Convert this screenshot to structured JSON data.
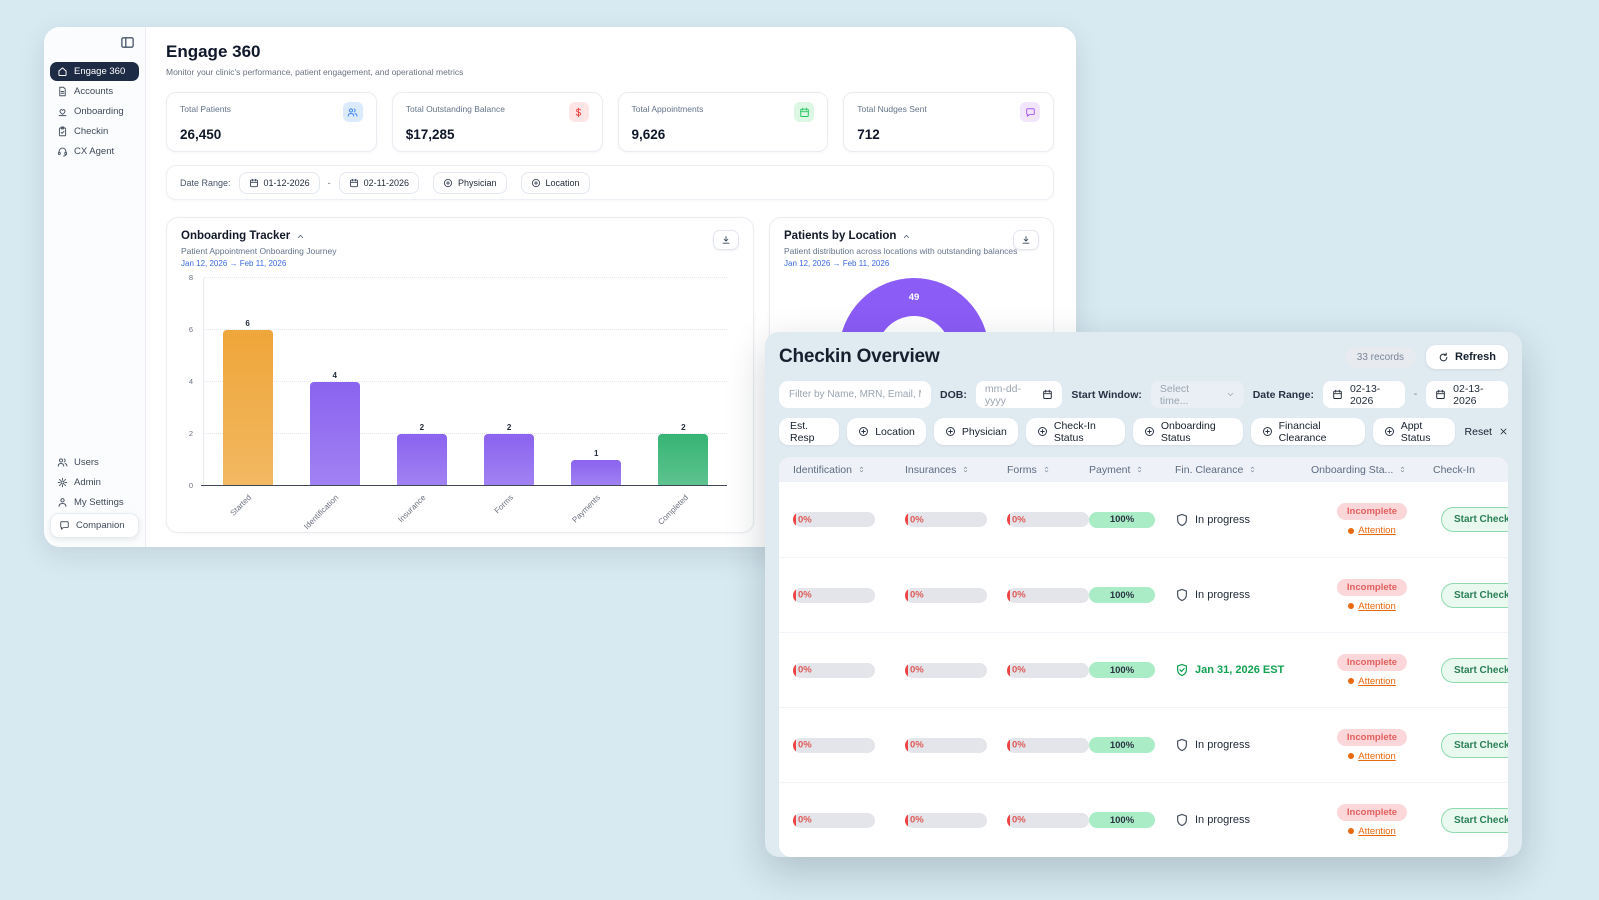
{
  "colors": {
    "page_bg": "#d7e9f1",
    "accent_blue": "#3b82f6",
    "accent_red": "#ef4444",
    "accent_green": "#22c55e",
    "accent_purple": "#a855f7",
    "link_blue": "#3b6be0"
  },
  "sidebar": {
    "nav_items": [
      {
        "label": "Engage 360",
        "icon": "home",
        "active": true
      },
      {
        "label": "Accounts",
        "icon": "document",
        "active": false
      },
      {
        "label": "Onboarding",
        "icon": "heart-care",
        "active": false
      },
      {
        "label": "Checkin",
        "icon": "clipboard",
        "active": false
      },
      {
        "label": "CX Agent",
        "icon": "headset",
        "active": false
      }
    ],
    "footer_items": [
      {
        "label": "Users",
        "icon": "users",
        "pill": false
      },
      {
        "label": "Admin",
        "icon": "gear",
        "pill": false
      },
      {
        "label": "My Settings",
        "icon": "person",
        "pill": false
      },
      {
        "label": "Companion",
        "icon": "chat",
        "pill": true
      }
    ]
  },
  "header": {
    "title": "Engage 360",
    "subtitle": "Monitor your clinic's performance, patient engagement, and operational metrics"
  },
  "stats": [
    {
      "label": "Total Patients",
      "value": "26,450",
      "icon": "users",
      "fg": "#3b82f6",
      "bg": "#dceafe"
    },
    {
      "label": "Total Outstanding Balance",
      "value": "$17,285",
      "icon": "dollar",
      "fg": "#ef4444",
      "bg": "#fde5e5"
    },
    {
      "label": "Total Appointments",
      "value": "9,626",
      "icon": "calendar",
      "fg": "#22c55e",
      "bg": "#dcf7e4"
    },
    {
      "label": "Total Nudges Sent",
      "value": "712",
      "icon": "chat",
      "fg": "#a855f7",
      "bg": "#f2e6fd"
    }
  ],
  "filter_bar": {
    "label": "Date Range:",
    "start_date": "01-12-2026",
    "separator": "-",
    "end_date": "02-11-2026",
    "physician_label": "Physician",
    "location_label": "Location"
  },
  "onboarding_tracker": {
    "title": "Onboarding Tracker",
    "subtitle": "Patient Appointment Onboarding Journey",
    "date_range": "Jan 12, 2026 → Feb 11, 2026"
  },
  "patients_by_location": {
    "title": "Patients by Location",
    "subtitle": "Patient distribution across locations with outstanding balances",
    "date_range": "Jan 12, 2026 → Feb 11, 2026"
  },
  "chart_data": [
    {
      "type": "bar",
      "title": "Onboarding Tracker",
      "subtitle": "Patient Appointment Onboarding Journey",
      "categories": [
        "Started",
        "Identification",
        "Insurance",
        "Forms",
        "Payments",
        "Completed"
      ],
      "values": [
        6,
        4,
        2,
        2,
        1,
        2
      ],
      "bar_colors": [
        "#efa63a",
        "#8a63ef",
        "#8a63ef",
        "#8a63ef",
        "#8a63ef",
        "#36b474"
      ],
      "xlabel": "",
      "ylabel": "",
      "ylim": [
        0,
        8
      ],
      "yticks": [
        0,
        2,
        4,
        6,
        8
      ],
      "grid": true,
      "legend": false
    },
    {
      "type": "donut",
      "title": "Patients by Location",
      "visible_segment_label": "49",
      "visible_segment_value": 49,
      "visible_segment_color": "#8b5cf6",
      "note": "chart partially occluded by Checkin Overview window"
    }
  ],
  "checkin": {
    "title": "Checkin Overview",
    "records_badge": "33 records",
    "refresh_label": "Refresh",
    "search_placeholder": "Filter by Name, MRN, Email, Mobile, or A",
    "dob_label": "DOB:",
    "dob_placeholder": "mm-dd-yyyy",
    "start_window_label": "Start Window:",
    "start_window_placeholder": "Select time...",
    "date_range_label": "Date Range:",
    "date_start": "02-13-2026",
    "separator": "-",
    "date_end": "02-13-2026",
    "filter_buttons": [
      {
        "label": "Est. Resp",
        "plus": false
      },
      {
        "label": "Location",
        "plus": true
      },
      {
        "label": "Physician",
        "plus": true
      },
      {
        "label": "Check-In Status",
        "plus": true
      },
      {
        "label": "Onboarding Status",
        "plus": true
      },
      {
        "label": "Financial Clearance",
        "plus": true
      },
      {
        "label": "Appt Status",
        "plus": true
      }
    ],
    "reset_label": "Reset",
    "table": {
      "columns": [
        {
          "label": "Identification",
          "sortable": true
        },
        {
          "label": "Insurances",
          "sortable": true
        },
        {
          "label": "Forms",
          "sortable": true
        },
        {
          "label": "Payment",
          "sortable": true
        },
        {
          "label": "Fin. Clearance",
          "sortable": true
        },
        {
          "label": "Onboarding Sta...",
          "sortable": true
        },
        {
          "label": "Check-In",
          "sortable": false
        }
      ],
      "rows": [
        {
          "identification": "0%",
          "insurances": "0%",
          "forms": "0%",
          "payment": "100%",
          "fin_clearance": "In progress",
          "fin_cleared": false,
          "onboarding_badge": "Incomplete",
          "attention": "Attention",
          "action": "Start Check-In"
        },
        {
          "identification": "0%",
          "insurances": "0%",
          "forms": "0%",
          "payment": "100%",
          "fin_clearance": "In progress",
          "fin_cleared": false,
          "onboarding_badge": "Incomplete",
          "attention": "Attention",
          "action": "Start Check-In"
        },
        {
          "identification": "0%",
          "insurances": "0%",
          "forms": "0%",
          "payment": "100%",
          "fin_clearance": "Jan 31, 2026 EST",
          "fin_cleared": true,
          "onboarding_badge": "Incomplete",
          "attention": "Attention",
          "action": "Start Check-In"
        },
        {
          "identification": "0%",
          "insurances": "0%",
          "forms": "0%",
          "payment": "100%",
          "fin_clearance": "In progress",
          "fin_cleared": false,
          "onboarding_badge": "Incomplete",
          "attention": "Attention",
          "action": "Start Check-In"
        },
        {
          "identification": "0%",
          "insurances": "0%",
          "forms": "0%",
          "payment": "100%",
          "fin_clearance": "In progress",
          "fin_cleared": false,
          "onboarding_badge": "Incomplete",
          "attention": "Attention",
          "action": "Start Check-In"
        }
      ]
    }
  }
}
